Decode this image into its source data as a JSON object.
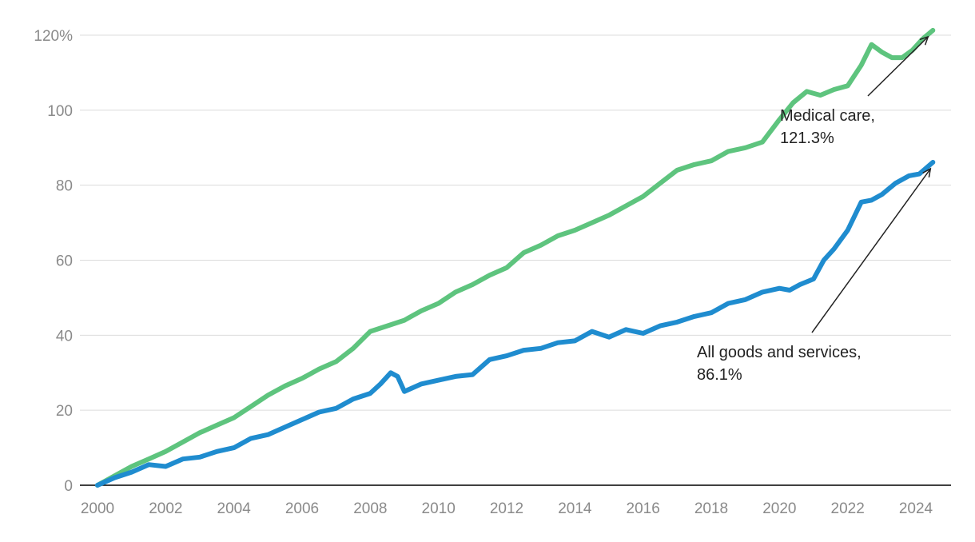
{
  "chart_data": {
    "type": "line",
    "title": "",
    "xlabel": "",
    "ylabel": "",
    "xlim": [
      2000,
      2024.6
    ],
    "ylim": [
      0,
      125
    ],
    "grid": true,
    "x_ticks": [
      {
        "value": 2000,
        "label": "2000"
      },
      {
        "value": 2002,
        "label": "2002"
      },
      {
        "value": 2004,
        "label": "2004"
      },
      {
        "value": 2006,
        "label": "2006"
      },
      {
        "value": 2008,
        "label": "2008"
      },
      {
        "value": 2010,
        "label": "2010"
      },
      {
        "value": 2012,
        "label": "2012"
      },
      {
        "value": 2014,
        "label": "2014"
      },
      {
        "value": 2016,
        "label": "2016"
      },
      {
        "value": 2018,
        "label": "2018"
      },
      {
        "value": 2020,
        "label": "2020"
      },
      {
        "value": 2022,
        "label": "2022"
      },
      {
        "value": 2024,
        "label": "2024"
      }
    ],
    "y_ticks": [
      {
        "value": 0,
        "label": "0"
      },
      {
        "value": 20,
        "label": "20"
      },
      {
        "value": 40,
        "label": "40"
      },
      {
        "value": 60,
        "label": "60"
      },
      {
        "value": 80,
        "label": "80"
      },
      {
        "value": 100,
        "label": "100"
      },
      {
        "value": 120,
        "label": "120%"
      }
    ],
    "series": [
      {
        "key": "medical",
        "color": "#5ec47e",
        "label_line1": "Medical care,",
        "label_line2": "121.3%",
        "x": [
          2000.0,
          2000.5,
          2001.0,
          2001.5,
          2002.0,
          2002.5,
          2003.0,
          2003.5,
          2004.0,
          2004.5,
          2005.0,
          2005.5,
          2006.0,
          2006.5,
          2007.0,
          2007.5,
          2008.0,
          2008.5,
          2009.0,
          2009.5,
          2010.0,
          2010.5,
          2011.0,
          2011.5,
          2012.0,
          2012.5,
          2013.0,
          2013.5,
          2014.0,
          2014.5,
          2015.0,
          2015.5,
          2016.0,
          2016.5,
          2017.0,
          2017.5,
          2018.0,
          2018.5,
          2019.0,
          2019.5,
          2020.0,
          2020.4,
          2020.8,
          2021.2,
          2021.6,
          2022.0,
          2022.4,
          2022.7,
          2023.0,
          2023.3,
          2023.6,
          2023.9,
          2024.2,
          2024.5
        ],
        "values": [
          0,
          2.5,
          5,
          7,
          9,
          11.5,
          14,
          16,
          18,
          21,
          24,
          26.5,
          28.5,
          31,
          33,
          36.5,
          41,
          42.5,
          44,
          46.5,
          48.5,
          51.5,
          53.5,
          56,
          58,
          62,
          64,
          66.5,
          68,
          70,
          72,
          74.5,
          77,
          80.5,
          84,
          85.5,
          86.5,
          89,
          90,
          91.5,
          97.5,
          102,
          105,
          104,
          105.5,
          106.5,
          112,
          117.5,
          115.5,
          114,
          114,
          116,
          119,
          121.3
        ]
      },
      {
        "key": "all",
        "color": "#1f8ccf",
        "label_line1": "All goods and services,",
        "label_line2": "86.1%",
        "x": [
          2000.0,
          2000.5,
          2001.0,
          2001.5,
          2002.0,
          2002.5,
          2003.0,
          2003.5,
          2004.0,
          2004.5,
          2005.0,
          2005.5,
          2006.0,
          2006.5,
          2007.0,
          2007.5,
          2008.0,
          2008.3,
          2008.6,
          2008.8,
          2009.0,
          2009.5,
          2010.0,
          2010.5,
          2011.0,
          2011.5,
          2012.0,
          2012.5,
          2013.0,
          2013.5,
          2014.0,
          2014.5,
          2015.0,
          2015.5,
          2016.0,
          2016.5,
          2017.0,
          2017.5,
          2018.0,
          2018.5,
          2019.0,
          2019.5,
          2020.0,
          2020.3,
          2020.6,
          2021.0,
          2021.3,
          2021.6,
          2022.0,
          2022.4,
          2022.7,
          2023.0,
          2023.4,
          2023.8,
          2024.1,
          2024.5
        ],
        "values": [
          0,
          2,
          3.5,
          5.5,
          5,
          7,
          7.5,
          9,
          10,
          12.5,
          13.5,
          15.5,
          17.5,
          19.5,
          20.5,
          23,
          24.5,
          27,
          30,
          29,
          25,
          27,
          28,
          29,
          29.5,
          33.5,
          34.5,
          36,
          36.5,
          38,
          38.5,
          41,
          39.5,
          41.5,
          40.5,
          42.5,
          43.5,
          45,
          46,
          48.5,
          49.5,
          51.5,
          52.5,
          52,
          53.5,
          55,
          60,
          63,
          68,
          75.5,
          76,
          77.5,
          80.5,
          82.5,
          83,
          86.1
        ]
      }
    ]
  }
}
